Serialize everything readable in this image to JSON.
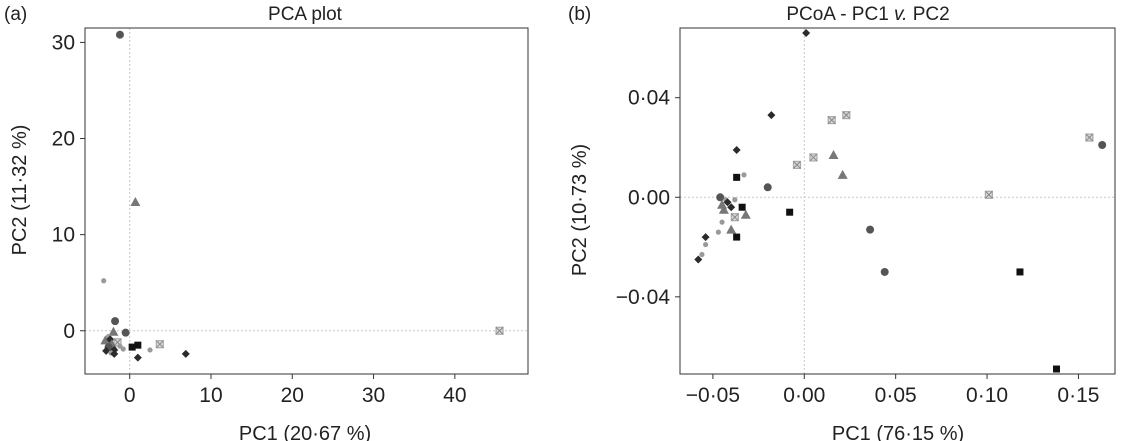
{
  "colors": {
    "dark_diamond": "#2b2b2b",
    "black_square": "#111111",
    "circle": "#555555",
    "triangle": "#777777",
    "small_dot": "#9a9a9a",
    "crossed_square": "#aaaaaa",
    "zero_line": "#c8c8c8",
    "frame": "#333333"
  },
  "chart_data": [
    {
      "type": "scatter",
      "panel_label": "(a)",
      "title": "PCA plot",
      "xlabel": "PC1 (20·67 %)",
      "ylabel": "PC2 (11·32 %)",
      "xlim": [
        -5.5,
        49
      ],
      "ylim": [
        -4.5,
        31.5
      ],
      "xticks": [
        0,
        10,
        20,
        30,
        40
      ],
      "yticks": [
        0,
        10,
        20,
        30
      ],
      "xtick_labels": [
        "0",
        "10",
        "20",
        "30",
        "40"
      ],
      "ytick_labels": [
        "0",
        "10",
        "20",
        "30"
      ],
      "zero_lines": true,
      "grid": false,
      "points": [
        {
          "x": -1.2,
          "y": 30.8,
          "marker": "circle"
        },
        {
          "x": 0.7,
          "y": 13.4,
          "marker": "triangle"
        },
        {
          "x": -3.2,
          "y": 5.2,
          "marker": "small_dot"
        },
        {
          "x": 45.5,
          "y": 0.0,
          "marker": "crossed_square"
        },
        {
          "x": -1.8,
          "y": 1.0,
          "marker": "circle"
        },
        {
          "x": -0.5,
          "y": -0.2,
          "marker": "circle"
        },
        {
          "x": -2.0,
          "y": -0.1,
          "marker": "triangle"
        },
        {
          "x": -2.6,
          "y": -0.6,
          "marker": "small_dot"
        },
        {
          "x": -3.0,
          "y": -1.0,
          "marker": "triangle"
        },
        {
          "x": -2.4,
          "y": -0.9,
          "marker": "dark_diamond"
        },
        {
          "x": -1.5,
          "y": -1.2,
          "marker": "crossed_square"
        },
        {
          "x": -2.2,
          "y": -1.4,
          "marker": "triangle"
        },
        {
          "x": -1.2,
          "y": -1.6,
          "marker": "small_dot"
        },
        {
          "x": -2.6,
          "y": -1.7,
          "marker": "circle"
        },
        {
          "x": -1.9,
          "y": -2.0,
          "marker": "dark_diamond"
        },
        {
          "x": -2.9,
          "y": -2.1,
          "marker": "dark_diamond"
        },
        {
          "x": -2.3,
          "y": -2.3,
          "marker": "small_dot"
        },
        {
          "x": -1.9,
          "y": -2.4,
          "marker": "dark_diamond"
        },
        {
          "x": -0.8,
          "y": -1.9,
          "marker": "small_dot"
        },
        {
          "x": 0.3,
          "y": -1.7,
          "marker": "black_square"
        },
        {
          "x": 1.0,
          "y": -1.5,
          "marker": "black_square"
        },
        {
          "x": 2.5,
          "y": -2.0,
          "marker": "small_dot"
        },
        {
          "x": 3.7,
          "y": -1.4,
          "marker": "crossed_square"
        },
        {
          "x": 1.0,
          "y": -2.8,
          "marker": "dark_diamond"
        },
        {
          "x": 6.9,
          "y": -2.4,
          "marker": "dark_diamond"
        }
      ]
    },
    {
      "type": "scatter",
      "panel_label": "(b)",
      "title": "PCoA - PC1 v. PC2",
      "title_parts": [
        "PCoA - PC1 ",
        "v.",
        " PC2"
      ],
      "xlabel": "PC1 (76·15 %)",
      "ylabel": "PC2 (10·73 %)",
      "xlim": [
        -0.068,
        0.17
      ],
      "ylim": [
        -0.071,
        0.068
      ],
      "xticks": [
        -0.05,
        0.0,
        0.05,
        0.1,
        0.15
      ],
      "yticks": [
        -0.04,
        0.0,
        0.04
      ],
      "xtick_labels": [
        "−0·05",
        "0·00",
        "0·05",
        "0·10",
        "0·15"
      ],
      "ytick_labels": [
        "−0·04",
        "0·00",
        "0·04"
      ],
      "zero_lines": true,
      "grid": false,
      "points": [
        {
          "x": 0.001,
          "y": 0.066,
          "marker": "dark_diamond"
        },
        {
          "x": -0.018,
          "y": 0.033,
          "marker": "dark_diamond"
        },
        {
          "x": 0.015,
          "y": 0.031,
          "marker": "crossed_square"
        },
        {
          "x": 0.023,
          "y": 0.033,
          "marker": "crossed_square"
        },
        {
          "x": 0.156,
          "y": 0.024,
          "marker": "crossed_square"
        },
        {
          "x": 0.163,
          "y": 0.021,
          "marker": "circle"
        },
        {
          "x": -0.037,
          "y": 0.019,
          "marker": "dark_diamond"
        },
        {
          "x": 0.016,
          "y": 0.017,
          "marker": "triangle"
        },
        {
          "x": 0.005,
          "y": 0.016,
          "marker": "crossed_square"
        },
        {
          "x": -0.004,
          "y": 0.013,
          "marker": "crossed_square"
        },
        {
          "x": 0.021,
          "y": 0.009,
          "marker": "triangle"
        },
        {
          "x": -0.033,
          "y": 0.009,
          "marker": "small_dot"
        },
        {
          "x": -0.037,
          "y": 0.008,
          "marker": "black_square"
        },
        {
          "x": -0.02,
          "y": 0.004,
          "marker": "circle"
        },
        {
          "x": 0.101,
          "y": 0.001,
          "marker": "crossed_square"
        },
        {
          "x": -0.046,
          "y": 0.0,
          "marker": "circle"
        },
        {
          "x": -0.043,
          "y": -0.001,
          "marker": "small_dot"
        },
        {
          "x": -0.042,
          "y": -0.002,
          "marker": "dark_diamond"
        },
        {
          "x": -0.038,
          "y": -0.001,
          "marker": "small_dot"
        },
        {
          "x": -0.045,
          "y": -0.003,
          "marker": "triangle"
        },
        {
          "x": -0.04,
          "y": -0.004,
          "marker": "dark_diamond"
        },
        {
          "x": -0.034,
          "y": -0.004,
          "marker": "black_square"
        },
        {
          "x": -0.044,
          "y": -0.005,
          "marker": "triangle"
        },
        {
          "x": -0.008,
          "y": -0.006,
          "marker": "black_square"
        },
        {
          "x": -0.032,
          "y": -0.007,
          "marker": "triangle"
        },
        {
          "x": -0.038,
          "y": -0.008,
          "marker": "crossed_square"
        },
        {
          "x": -0.045,
          "y": -0.01,
          "marker": "small_dot"
        },
        {
          "x": -0.04,
          "y": -0.013,
          "marker": "triangle"
        },
        {
          "x": -0.047,
          "y": -0.014,
          "marker": "small_dot"
        },
        {
          "x": 0.036,
          "y": -0.013,
          "marker": "circle"
        },
        {
          "x": -0.054,
          "y": -0.016,
          "marker": "dark_diamond"
        },
        {
          "x": -0.037,
          "y": -0.016,
          "marker": "black_square"
        },
        {
          "x": -0.054,
          "y": -0.019,
          "marker": "small_dot"
        },
        {
          "x": -0.056,
          "y": -0.023,
          "marker": "small_dot"
        },
        {
          "x": -0.058,
          "y": -0.025,
          "marker": "dark_diamond"
        },
        {
          "x": 0.044,
          "y": -0.03,
          "marker": "circle"
        },
        {
          "x": 0.118,
          "y": -0.03,
          "marker": "black_square"
        },
        {
          "x": 0.138,
          "y": -0.069,
          "marker": "black_square"
        }
      ]
    }
  ]
}
